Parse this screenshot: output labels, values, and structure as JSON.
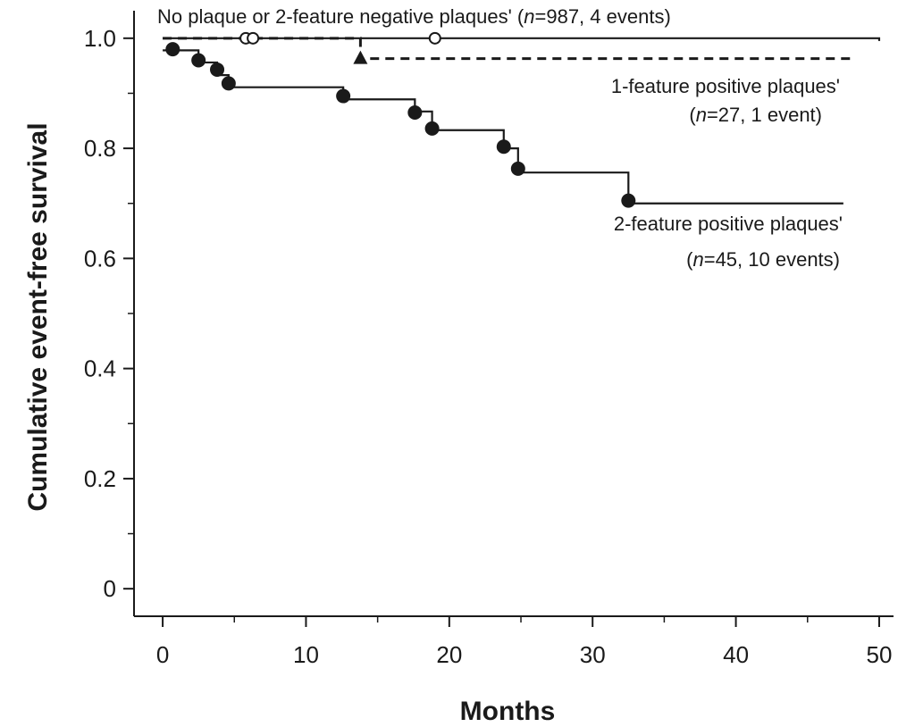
{
  "chart_data": {
    "type": "line",
    "title": "",
    "xlabel": "Months",
    "ylabel": "Cumulative event-free survival",
    "xlim": [
      -2,
      51
    ],
    "ylim": [
      -0.05,
      1.05
    ],
    "xticks": [
      0,
      10,
      20,
      30,
      40,
      50
    ],
    "xtick_labels": [
      "0",
      "10",
      "20",
      "30",
      "40",
      "50"
    ],
    "yticks": [
      0,
      0.2,
      0.4,
      0.6,
      0.8,
      1.0
    ],
    "ytick_labels": [
      "0",
      "0.2",
      "0.4",
      "0.6",
      "0.8",
      "1.0"
    ],
    "grid": false,
    "legend": "none",
    "series": [
      {
        "label_parts": [
          "No plaque or  2-feature negative plaques' (",
          "n",
          "=987, 4 events)"
        ],
        "line_style": "solid",
        "marker": "open-circle",
        "steps": [
          [
            0,
            1.0
          ],
          [
            50,
            0.995
          ]
        ],
        "markers": [
          [
            5.8,
            1.0
          ],
          [
            6.3,
            1.0
          ],
          [
            19,
            1.0
          ]
        ]
      },
      {
        "label_line1": "1-feature positive plaques'",
        "label_line2_parts": [
          "(",
          "n",
          "=27, 1 event)"
        ],
        "line_style": "dashed",
        "marker": "triangle",
        "steps": [
          [
            0,
            1.0
          ],
          [
            13.8,
            0.963
          ],
          [
            48,
            0.963
          ]
        ],
        "markers": [
          [
            13.8,
            0.963
          ]
        ]
      },
      {
        "label_line1": "2-feature positive plaques'",
        "label_line2_parts": [
          "(",
          "n",
          "=45, 10 events)"
        ],
        "line_style": "solid",
        "marker": "filled-circle",
        "steps": [
          [
            0,
            0.978
          ],
          [
            2.5,
            0.956
          ],
          [
            3.8,
            0.933
          ],
          [
            4.6,
            0.911
          ],
          [
            12.6,
            0.889
          ],
          [
            17.6,
            0.867
          ],
          [
            18.8,
            0.833
          ],
          [
            23.8,
            0.8
          ],
          [
            24.8,
            0.756
          ],
          [
            32.5,
            0.7
          ],
          [
            47.5,
            0.7
          ]
        ],
        "markers": [
          [
            0.7,
            0.98
          ],
          [
            2.5,
            0.96
          ],
          [
            3.8,
            0.943
          ],
          [
            4.6,
            0.918
          ],
          [
            12.6,
            0.895
          ],
          [
            17.6,
            0.865
          ],
          [
            18.8,
            0.836
          ],
          [
            23.8,
            0.803
          ],
          [
            24.8,
            0.763
          ],
          [
            32.5,
            0.705
          ]
        ]
      }
    ]
  }
}
